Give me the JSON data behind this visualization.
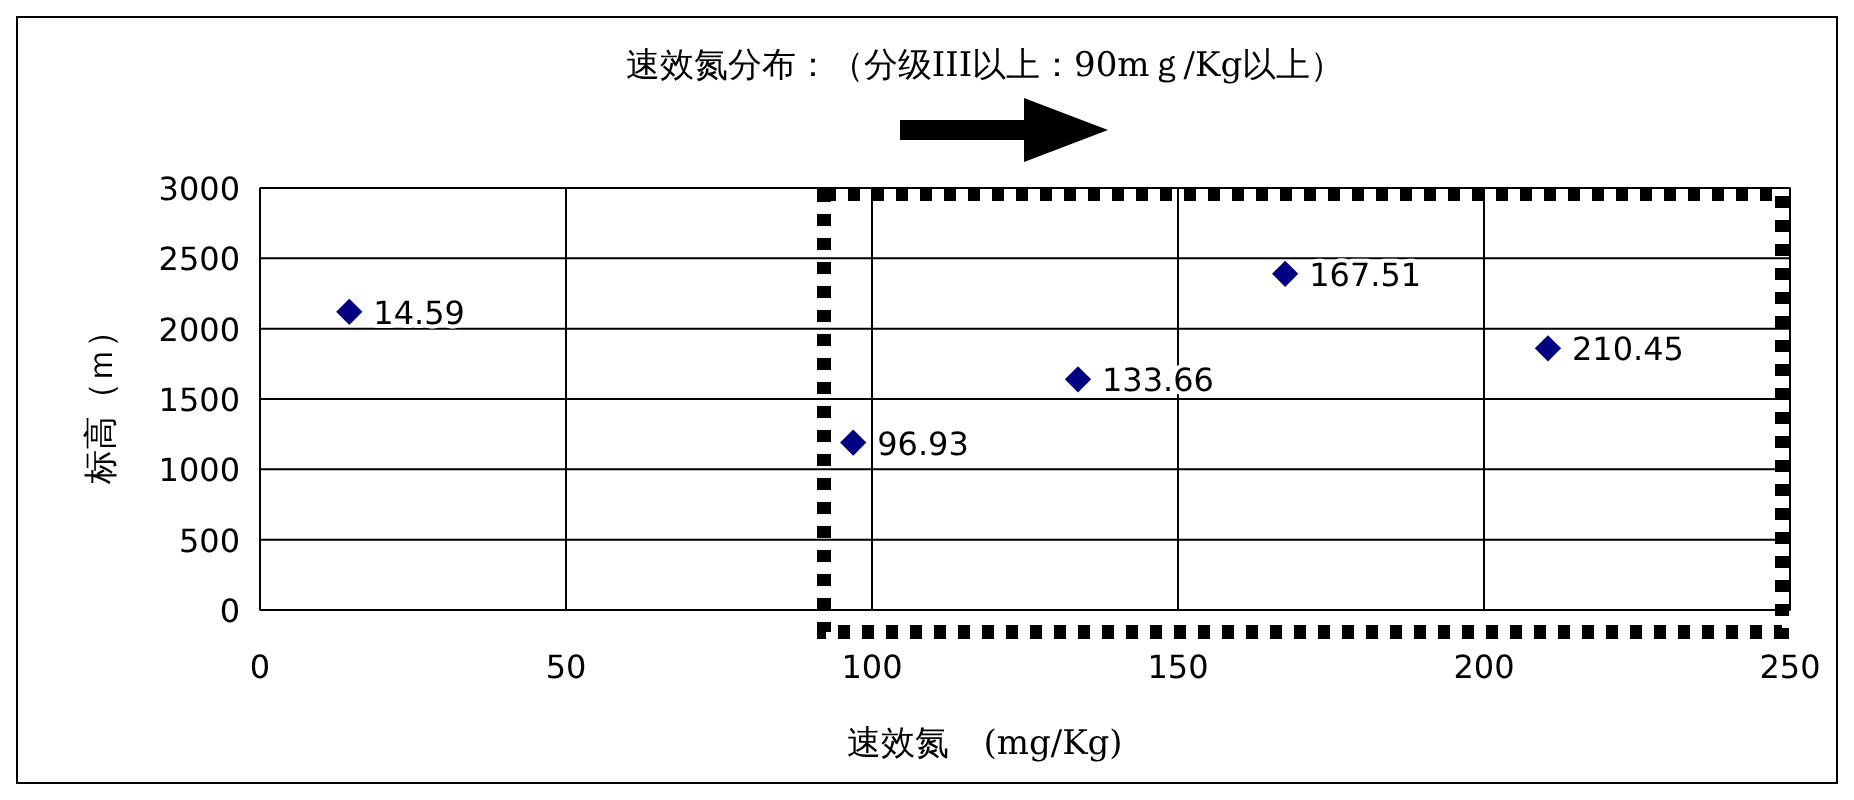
{
  "chart_data": {
    "type": "scatter",
    "title": "速效氮分布：（分级III以上：90mｇ/Kg以上）",
    "xlabel": "速效氮　(mg/Kg)",
    "ylabel": "标高（ｍ）",
    "x": [
      14.59,
      96.93,
      133.66,
      167.51,
      210.45
    ],
    "series": [
      {
        "color": "#000080",
        "values": [
          2120,
          1190,
          1640,
          2390,
          1860
        ]
      }
    ],
    "annotations": [
      {
        "text": "14.59",
        "x": 14.59,
        "y": 2120
      },
      {
        "text": "96.93",
        "x": 96.93,
        "y": 1190
      },
      {
        "text": "133.66",
        "x": 133.66,
        "y": 1640
      },
      {
        "text": "167.51",
        "x": 167.51,
        "y": 2390
      },
      {
        "text": "210.45",
        "x": 210.45,
        "y": 1860
      }
    ],
    "marker": "diamond",
    "xlim": [
      0,
      250
    ],
    "xticks": [
      0,
      50,
      100,
      150,
      200,
      250
    ],
    "ylim": [
      0,
      3000
    ],
    "yticks": [
      0,
      500,
      1000,
      1500,
      2000,
      2500,
      3000
    ],
    "grid": true
  }
}
